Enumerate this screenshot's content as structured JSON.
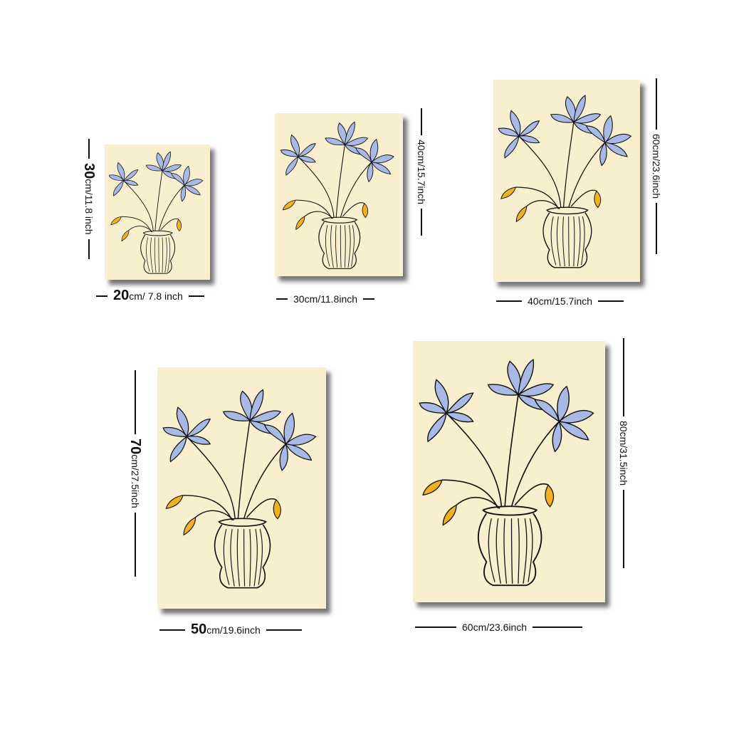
{
  "colors": {
    "poster_bg": "#f8efcf",
    "petal": "#a9b9e6",
    "bud": "#f2b21f",
    "ink": "#111111"
  },
  "sizes": [
    {
      "width_num": "20",
      "width_unit": "cm/ 7.8 inch",
      "height_num": "30",
      "height_unit": "cm/11.8 inch"
    },
    {
      "width_label": "30cm/11.8inch",
      "height_label": "40cm/15.7inch"
    },
    {
      "width_label": "40cm/15.7inch",
      "height_label": "60cm/23.6inch"
    },
    {
      "width_num": "50",
      "width_unit": "cm/19.6inch",
      "height_num": "70",
      "height_unit": "cm/27.5inch"
    },
    {
      "width_label": "60cm/23.6inch",
      "height_label": "80cm/31.5inch"
    }
  ]
}
